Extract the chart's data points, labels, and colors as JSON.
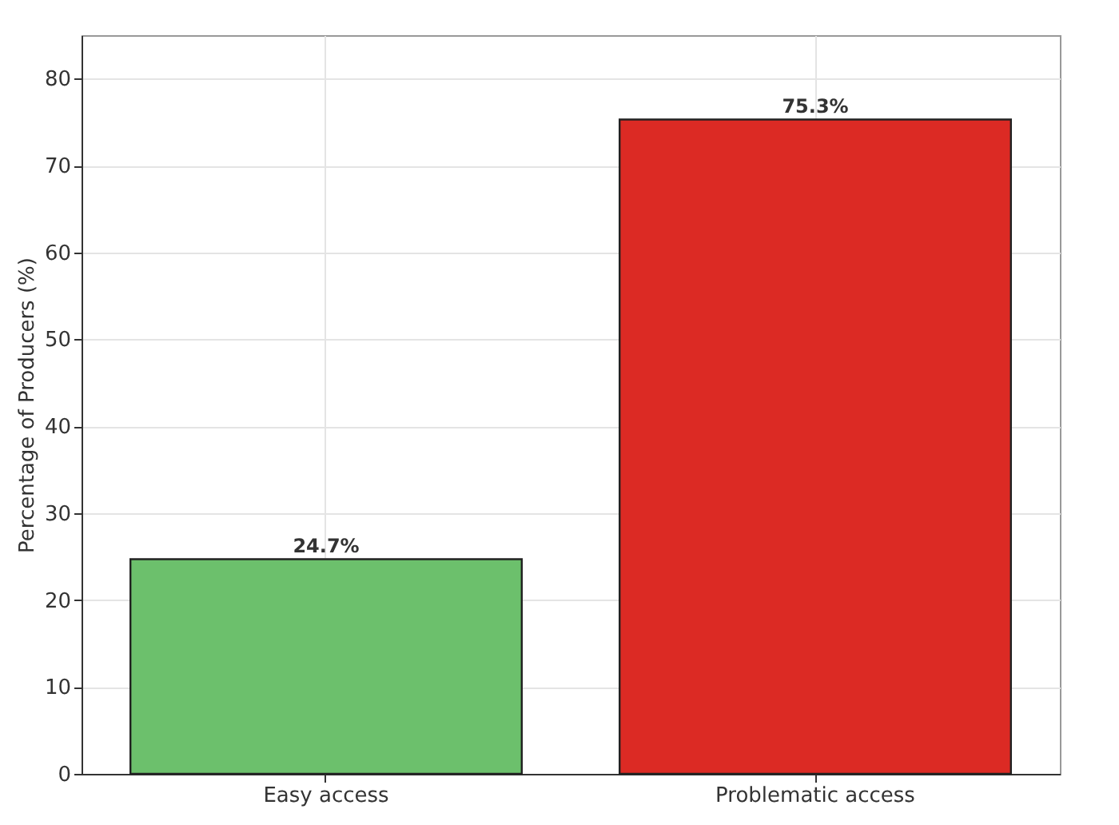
{
  "chart_data": {
    "type": "bar",
    "ylabel": "Percentage of Producers (%)",
    "categories": [
      "Easy access",
      "Problematic access"
    ],
    "values": [
      24.7,
      75.3
    ],
    "colors": [
      "#6cc06c",
      "#dc2a24"
    ],
    "value_labels": [
      "24.7%",
      "75.3%"
    ],
    "ylim": [
      0,
      85
    ],
    "yticks": [
      0,
      10,
      20,
      30,
      40,
      50,
      60,
      70,
      80
    ],
    "grid": true,
    "legend": false
  }
}
